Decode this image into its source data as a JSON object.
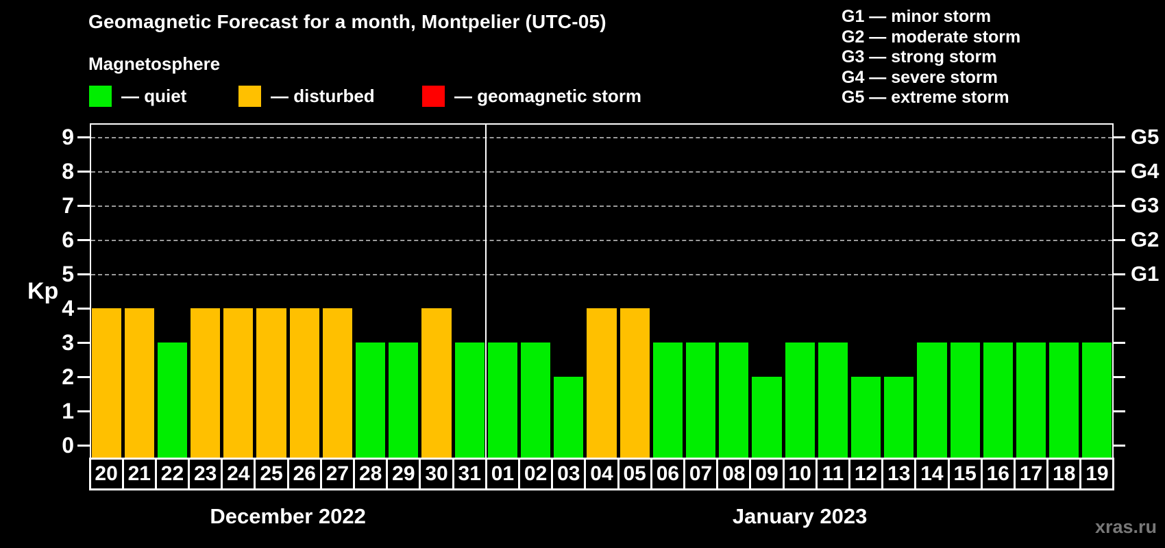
{
  "title": "Geomagnetic Forecast for a month, Montpelier (UTC-05)",
  "subtitle": "Magnetosphere",
  "legend": [
    {
      "key": "quiet",
      "label": "— quiet",
      "color": "#00ee00"
    },
    {
      "key": "disturbed",
      "label": "— disturbed",
      "color": "#ffc000"
    },
    {
      "key": "storm",
      "label": "— geomagnetic storm",
      "color": "#ff0000"
    }
  ],
  "g_legend": [
    "G1 — minor storm",
    "G2 — moderate storm",
    "G3 — strong storm",
    "G4 — severe storm",
    "G5 — extreme storm"
  ],
  "watermark": "xras.ru",
  "chart_data": {
    "type": "bar",
    "ylabel": "Kp",
    "ylim": [
      0,
      9
    ],
    "y_ticks": [
      0,
      1,
      2,
      3,
      4,
      5,
      6,
      7,
      8,
      9
    ],
    "grid": "dashed horizontal at Kp 5-9 only",
    "right_axis": [
      {
        "kp": 5,
        "label": "G1"
      },
      {
        "kp": 6,
        "label": "G2"
      },
      {
        "kp": 7,
        "label": "G3"
      },
      {
        "kp": 8,
        "label": "G4"
      },
      {
        "kp": 9,
        "label": "G5"
      }
    ],
    "colors": {
      "quiet": "#00ee00",
      "disturbed": "#ffc000",
      "storm": "#ff0000",
      "axis": "#ffffff",
      "gridline": "#9c9c9c"
    },
    "months": [
      {
        "label": "December 2022",
        "days": [
          {
            "day": "20",
            "kp": 4,
            "state": "disturbed"
          },
          {
            "day": "21",
            "kp": 4,
            "state": "disturbed"
          },
          {
            "day": "22",
            "kp": 3,
            "state": "quiet"
          },
          {
            "day": "23",
            "kp": 4,
            "state": "disturbed"
          },
          {
            "day": "24",
            "kp": 4,
            "state": "disturbed"
          },
          {
            "day": "25",
            "kp": 4,
            "state": "disturbed"
          },
          {
            "day": "26",
            "kp": 4,
            "state": "disturbed"
          },
          {
            "day": "27",
            "kp": 4,
            "state": "disturbed"
          },
          {
            "day": "28",
            "kp": 3,
            "state": "quiet"
          },
          {
            "day": "29",
            "kp": 3,
            "state": "quiet"
          },
          {
            "day": "30",
            "kp": 4,
            "state": "disturbed"
          },
          {
            "day": "31",
            "kp": 3,
            "state": "quiet"
          }
        ]
      },
      {
        "label": "January 2023",
        "days": [
          {
            "day": "01",
            "kp": 3,
            "state": "quiet"
          },
          {
            "day": "02",
            "kp": 3,
            "state": "quiet"
          },
          {
            "day": "03",
            "kp": 2,
            "state": "quiet"
          },
          {
            "day": "04",
            "kp": 4,
            "state": "disturbed"
          },
          {
            "day": "05",
            "kp": 4,
            "state": "disturbed"
          },
          {
            "day": "06",
            "kp": 3,
            "state": "quiet"
          },
          {
            "day": "07",
            "kp": 3,
            "state": "quiet"
          },
          {
            "day": "08",
            "kp": 3,
            "state": "quiet"
          },
          {
            "day": "09",
            "kp": 2,
            "state": "quiet"
          },
          {
            "day": "10",
            "kp": 3,
            "state": "quiet"
          },
          {
            "day": "11",
            "kp": 3,
            "state": "quiet"
          },
          {
            "day": "12",
            "kp": 2,
            "state": "quiet"
          },
          {
            "day": "13",
            "kp": 2,
            "state": "quiet"
          },
          {
            "day": "14",
            "kp": 3,
            "state": "quiet"
          },
          {
            "day": "15",
            "kp": 3,
            "state": "quiet"
          },
          {
            "day": "16",
            "kp": 3,
            "state": "quiet"
          },
          {
            "day": "17",
            "kp": 3,
            "state": "quiet"
          },
          {
            "day": "18",
            "kp": 3,
            "state": "quiet"
          },
          {
            "day": "19",
            "kp": 3,
            "state": "quiet"
          }
        ]
      }
    ]
  }
}
